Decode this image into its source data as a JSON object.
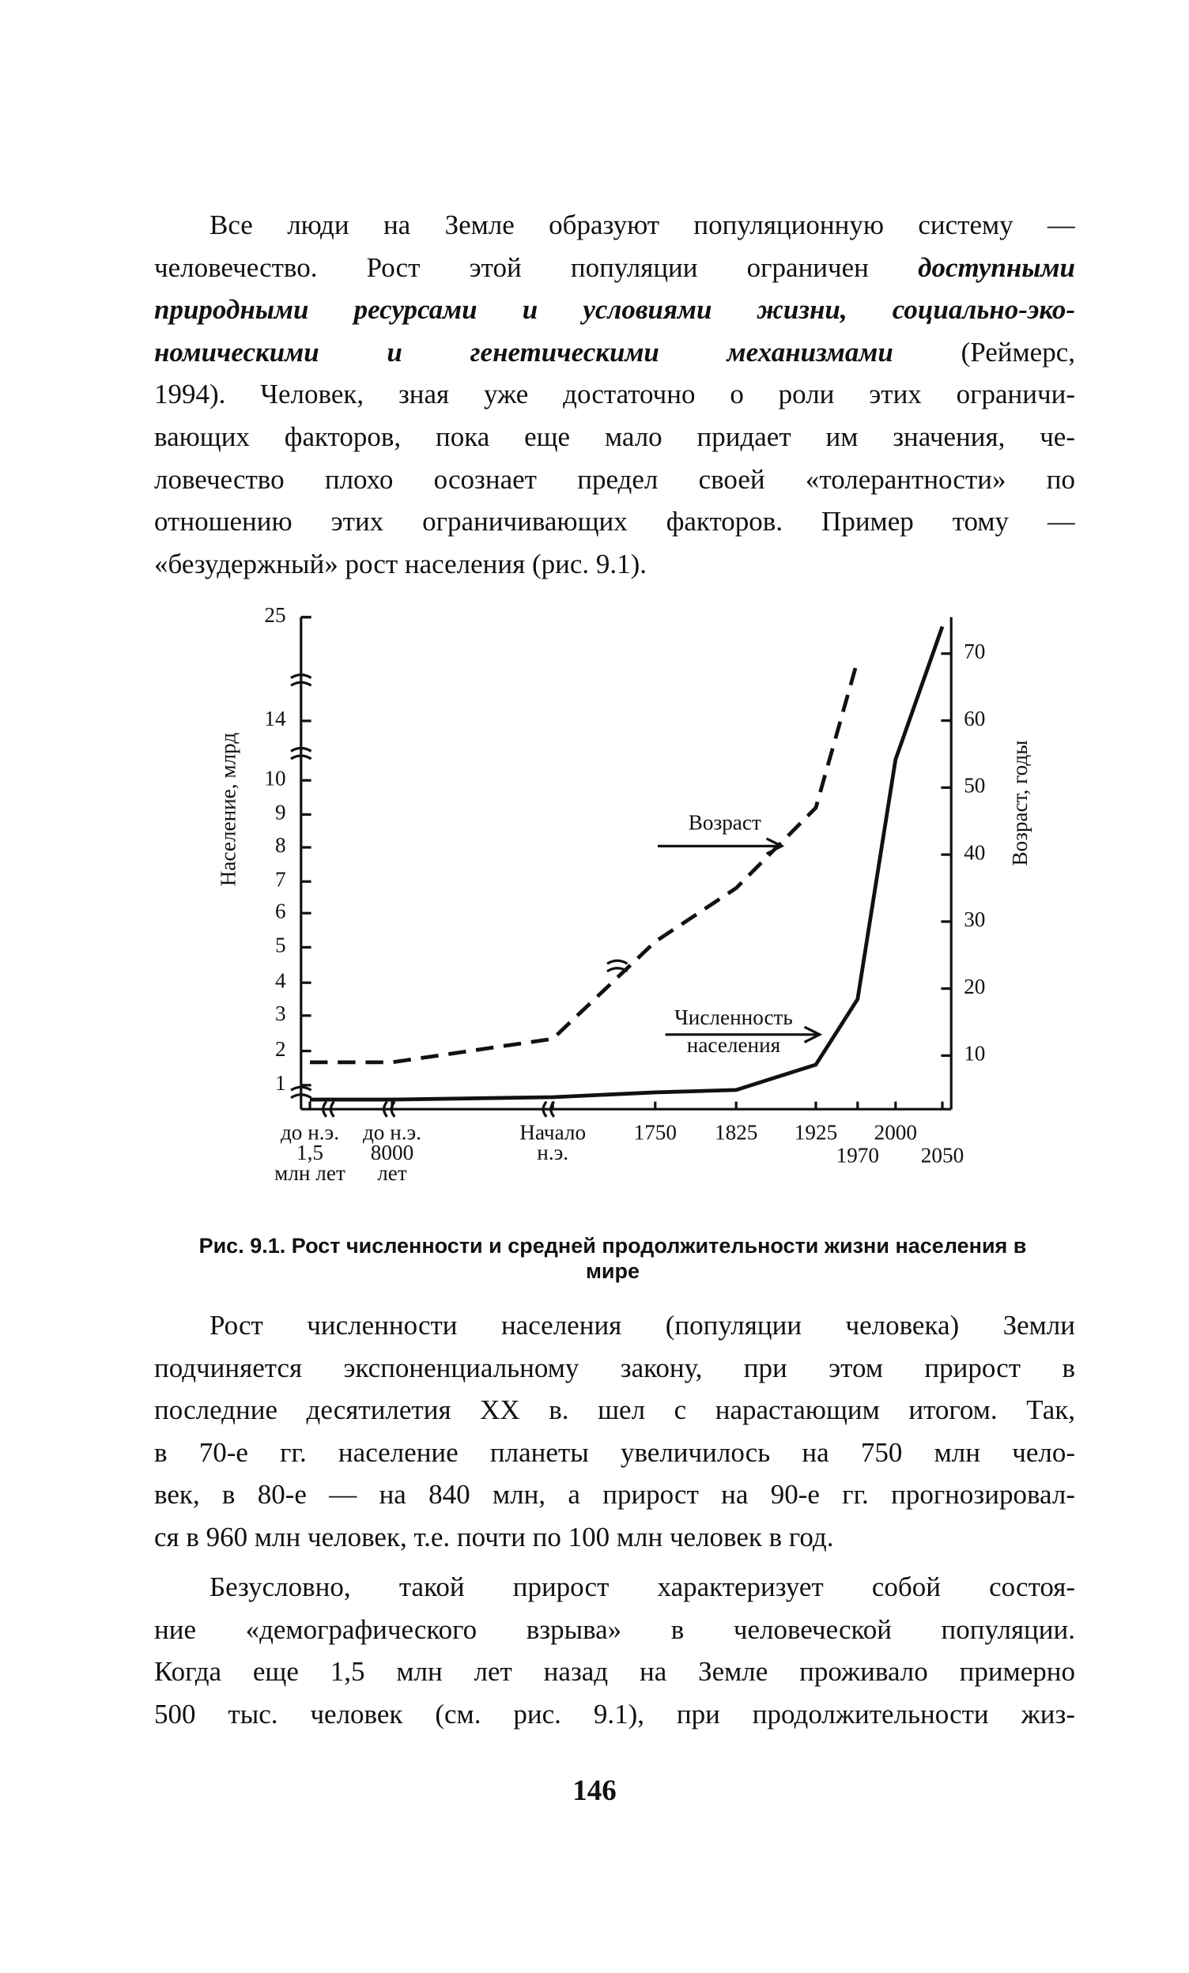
{
  "paragraphs": [
    {
      "lines": [
        [
          "Все люди на Земле образуют популяционную систему —"
        ],
        [
          "человечество. Рост этой популяции ограничен ",
          {
            "text": "доступными",
            "bold_italic": true
          }
        ],
        [
          {
            "text": "природными ресурсами и условиями жизни, социально-эко-",
            "bold_italic": true
          }
        ],
        [
          {
            "text": "номическими и генетическими механизмами",
            "bold_italic": true
          },
          " (Реймерс,"
        ],
        [
          "1994). Человек, зная уже достаточно о роли этих ограничи-"
        ],
        [
          "вающих факторов, пока еще мало придает им значения, че-"
        ],
        [
          "ловечество плохо осознает предел своей «толерантности» по"
        ],
        [
          "отношению этих ограничивающих факторов. Пример тому —"
        ],
        [
          "«безудержный» рост населения (рис. 9.1)."
        ]
      ]
    },
    {
      "lines": [
        [
          "Рост численности населения (популяции человека) Земли"
        ],
        [
          "подчиняется экспоненциальному закону, при этом прирост в"
        ],
        [
          "последние десятилетия XX в. шел с нарастающим итогом. Так,"
        ],
        [
          "в 70-е гг. население планеты увеличилось на 750 млн чело-"
        ],
        [
          "век, в 80-е — на 840 млн, а прирост на 90-е гг. прогнозировал-"
        ],
        [
          "ся в 960 млн человек, т.е. почти по 100 млн человек в год."
        ]
      ]
    },
    {
      "lines": [
        [
          "Безусловно, такой прирост характеризует собой состоя-"
        ],
        [
          "ние «демографического взрыва» в человеческой популяции."
        ],
        [
          "Когда еще 1,5 млн лет назад на Земле проживало примерно"
        ],
        [
          "500 тыс. человек (см. рис. 9.1), при продолжительности жиз-"
        ]
      ]
    }
  ],
  "page_number": "146",
  "chart_data": {
    "type": "line",
    "caption": "Рис. 9.1. Рост численности и средней продолжительности жизни населения в мире",
    "y_label": "Население, млрд",
    "y2_label": "Возраст, годы",
    "categories": [
      "до н.э.\n1,5\nмлн лет",
      "до н.э.\n8000\nлет",
      "Начало\nн.э.",
      "1750",
      "1825",
      "1925",
      "1970",
      "2000",
      "2050"
    ],
    "series": [
      {
        "name": "Численность населения",
        "color": "#111111",
        "dashed": false,
        "values": [
          0.4,
          0.4,
          0.5,
          0.7,
          0.8,
          1.6,
          3.5,
          11.4,
          24
        ]
      },
      {
        "name": "Возраст",
        "color": "#111111",
        "dashed": true,
        "axis": "y2",
        "values": [
          9,
          9,
          12.5,
          27,
          35,
          47,
          69,
          null,
          null
        ]
      }
    ],
    "ylim": [
      0,
      25
    ],
    "yticks": [
      1,
      2,
      3,
      4,
      5,
      6,
      7,
      8,
      9,
      10,
      14,
      25
    ],
    "y2lim": [
      2,
      76
    ],
    "y2ticks": [
      10,
      20,
      30,
      40,
      50,
      60,
      70
    ]
  }
}
